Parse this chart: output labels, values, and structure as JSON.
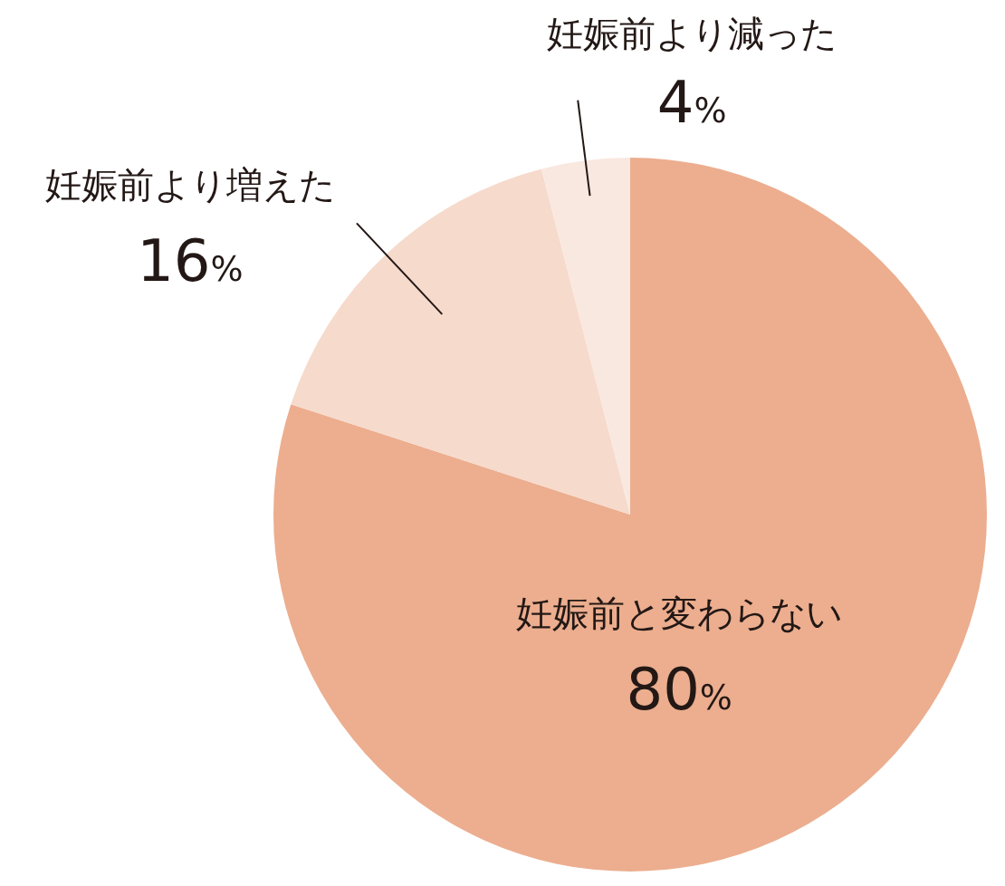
{
  "chart_data": {
    "type": "pie",
    "categories": [
      "妊娠前と変わらない",
      "妊娠前より増えた",
      "妊娠前より減った"
    ],
    "values": [
      80,
      16,
      4
    ],
    "colors": [
      "#ecae8f",
      "#f6dacc",
      "#f9e8e0"
    ],
    "value_labels": [
      "80%",
      "16%",
      "4%"
    ]
  }
}
